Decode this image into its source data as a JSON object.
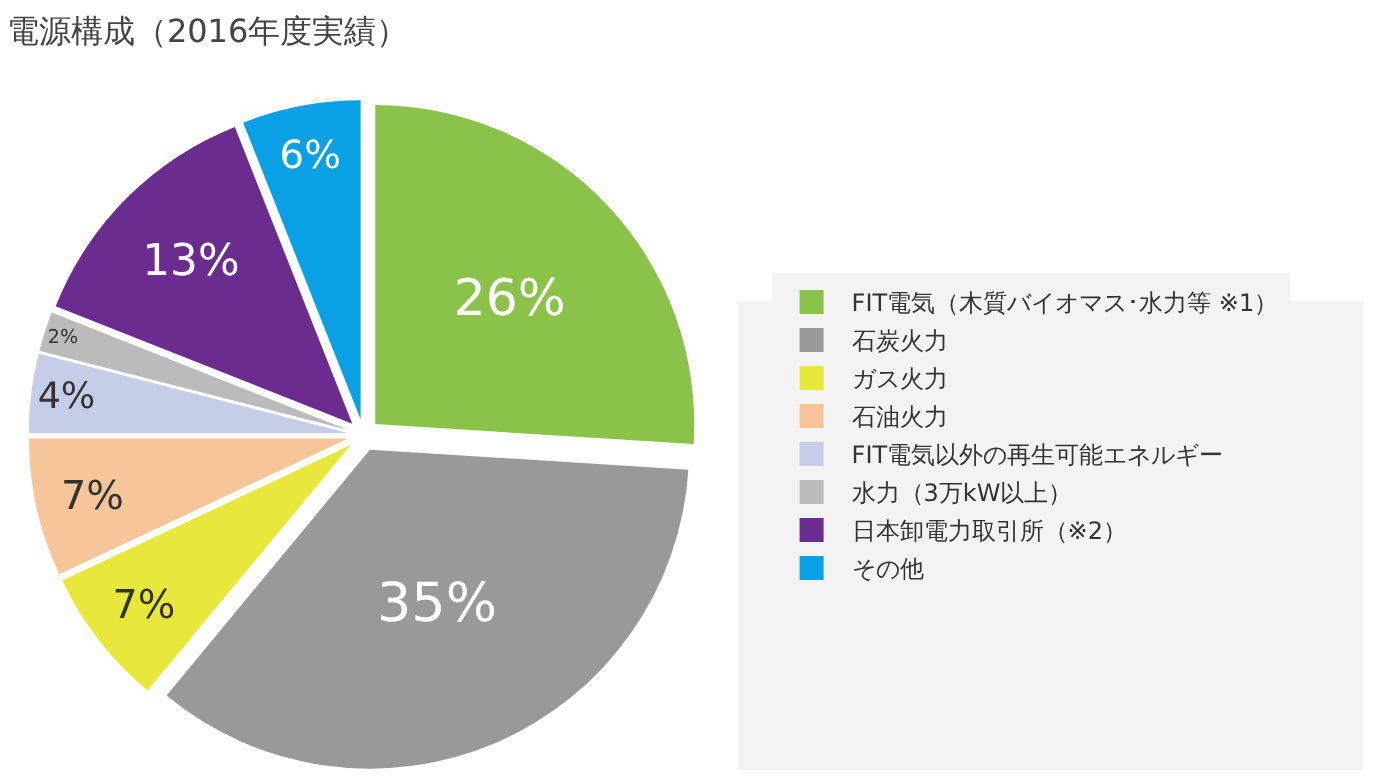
{
  "chart_data": {
    "type": "pie",
    "title": "電源構成（2016年度実績）",
    "categories": [
      "FIT電気（木質バイオマス･水力等 ※1）",
      "石炭火力",
      "ガス火力",
      "石油火力",
      "FIT電気以外の再生可能エネルギー",
      "水力（3万kW以上）",
      "日本卸電力取引所（※2）",
      "その他"
    ],
    "values": [
      26,
      35,
      7,
      7,
      4,
      2,
      13,
      6
    ],
    "colors": [
      "#8bc34a",
      "#999999",
      "#e8e83c",
      "#f6c59a",
      "#c5cde9",
      "#bbbbbb",
      "#6b2c8f",
      "#0aa0e6"
    ],
    "value_labels": [
      "26%",
      "35%",
      "7%",
      "7%",
      "4%",
      "2%",
      "13%",
      "6%"
    ],
    "legend": "right"
  }
}
